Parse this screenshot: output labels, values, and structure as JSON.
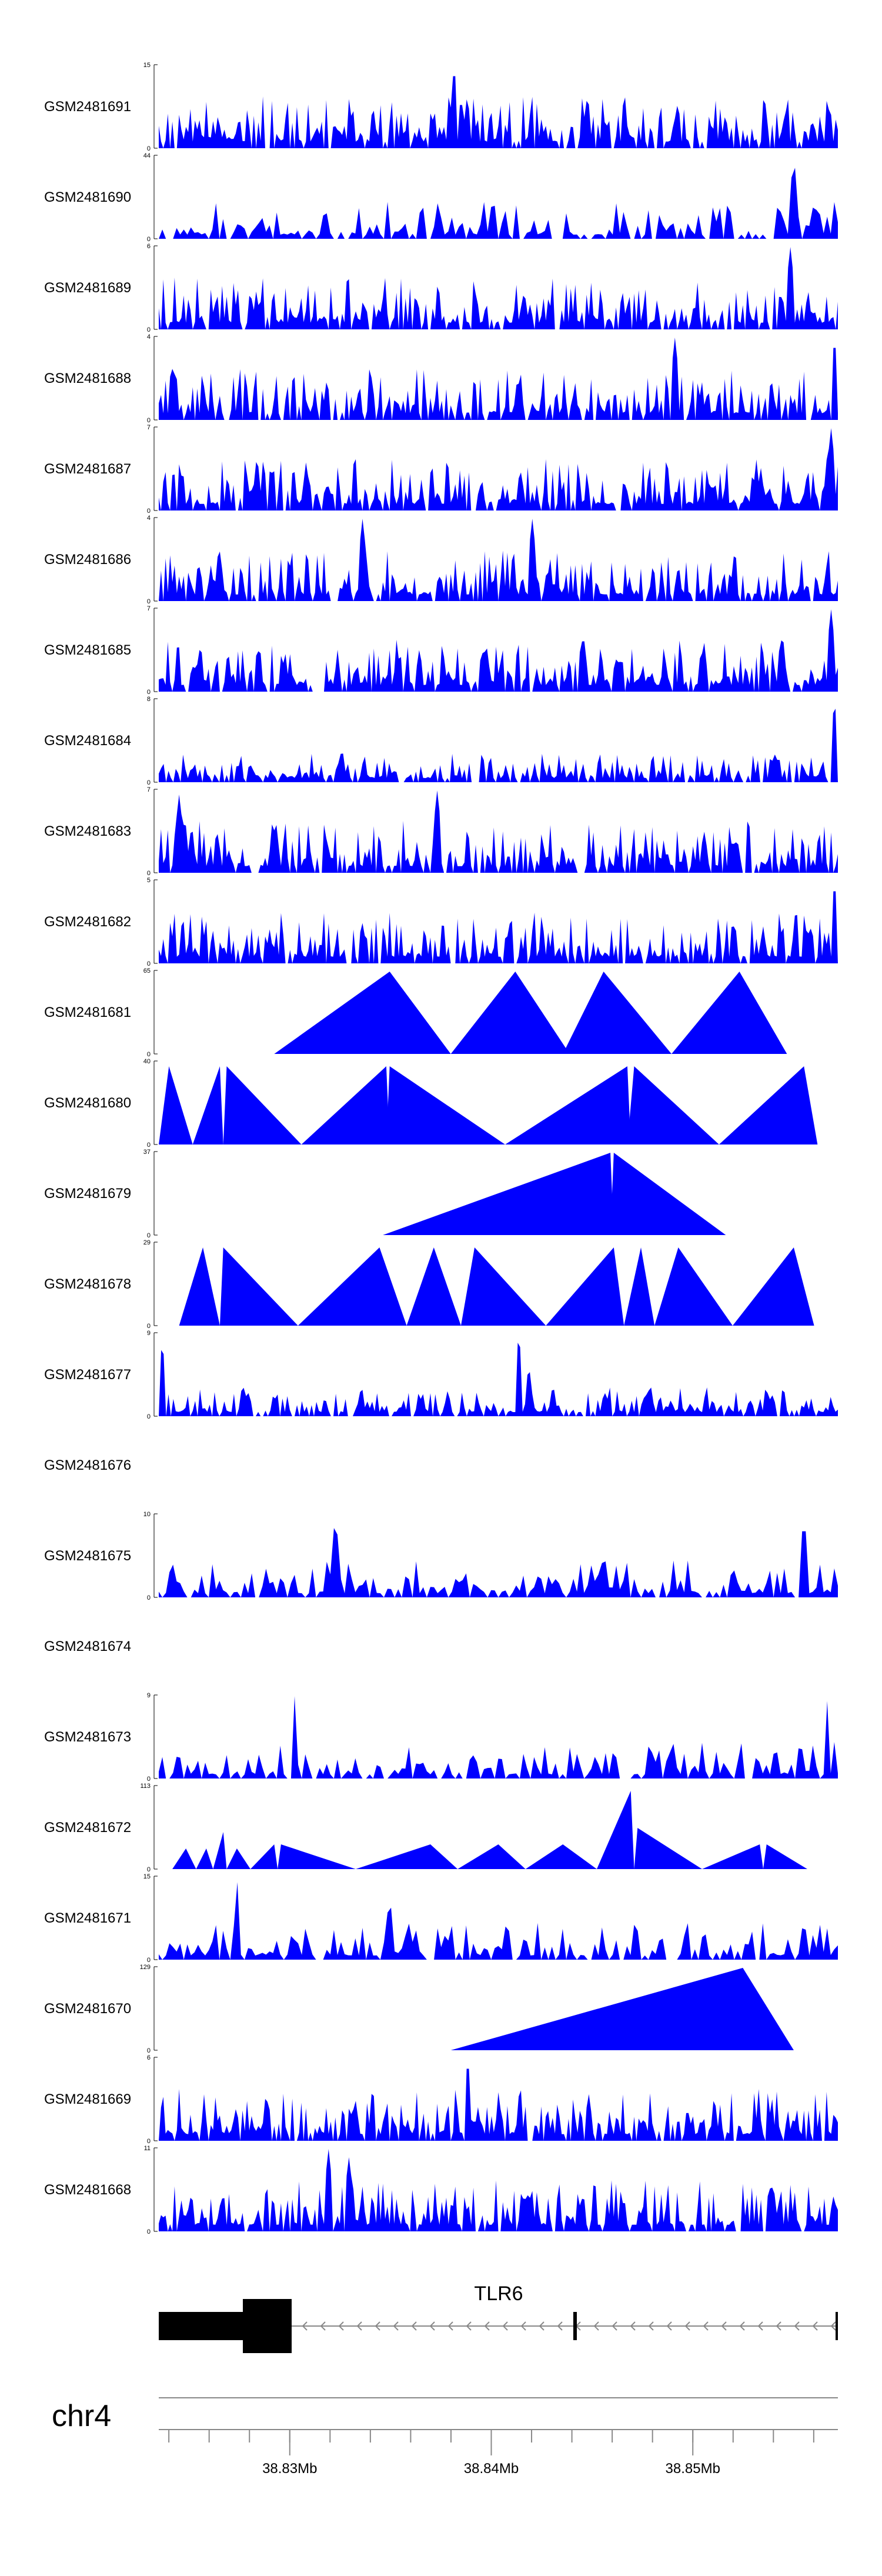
{
  "chart_data": {
    "type": "area",
    "chromosome": "chr4",
    "x_range": [
      38.8235,
      38.8572
    ],
    "x_ticks": [
      "38.83Mb",
      "38.84Mb",
      "38.85Mb"
    ],
    "x_tick_values": [
      38.83,
      38.84,
      38.85
    ],
    "color": "#0000ff",
    "gene": {
      "name": "TLR6",
      "strand": "-"
    },
    "tracks": [
      {
        "label": "GSM2481691",
        "ymax": 15,
        "pattern": "dense",
        "seed": 11,
        "peaks": [
          [
            0.435,
            1.0
          ],
          [
            0.445,
            0.6
          ],
          [
            0.455,
            0.55
          ]
        ]
      },
      {
        "label": "GSM2481690",
        "ymax": 44,
        "pattern": "sparse",
        "seed": 12,
        "peaks": [
          [
            0.935,
            1.0
          ],
          [
            0.955,
            0.2
          ]
        ]
      },
      {
        "label": "GSM2481689",
        "ymax": 6,
        "pattern": "dense",
        "seed": 13,
        "peaks": [
          [
            0.93,
            1.0
          ]
        ]
      },
      {
        "label": "GSM2481688",
        "ymax": 4,
        "pattern": "dense",
        "seed": 14,
        "peaks": [
          [
            0.76,
            1.0
          ],
          [
            0.995,
            1.0
          ]
        ]
      },
      {
        "label": "GSM2481687",
        "ymax": 7,
        "pattern": "dense",
        "seed": 15,
        "peaks": [
          [
            0.99,
            1.0
          ]
        ]
      },
      {
        "label": "GSM2481686",
        "ymax": 4,
        "pattern": "dense",
        "seed": 16,
        "peaks": [
          [
            0.3,
            1.0
          ],
          [
            0.55,
            1.0
          ]
        ]
      },
      {
        "label": "GSM2481685",
        "ymax": 7,
        "pattern": "dense",
        "seed": 17,
        "peaks": [
          [
            0.99,
            1.0
          ]
        ]
      },
      {
        "label": "GSM2481684",
        "ymax": 8,
        "pattern": "lowdense",
        "seed": 18,
        "peaks": [
          [
            0.995,
            1.0
          ]
        ]
      },
      {
        "label": "GSM2481683",
        "ymax": 7,
        "pattern": "dense",
        "seed": 19,
        "peaks": [
          [
            0.03,
            0.95
          ],
          [
            0.41,
            1.0
          ]
        ]
      },
      {
        "label": "GSM2481682",
        "ymax": 5,
        "pattern": "dense",
        "seed": 20,
        "peaks": [
          [
            0.995,
            1.0
          ]
        ]
      },
      {
        "label": "GSM2481681",
        "ymax": 65,
        "pattern": "triangles",
        "triangles": [
          [
            0.17,
            0.34,
            0.43,
            1.0
          ],
          [
            0.43,
            0.525,
            0.605,
            1.0
          ],
          [
            0.595,
            0.655,
            0.755,
            1.0
          ],
          [
            0.755,
            0.855,
            0.925,
            1.0
          ]
        ]
      },
      {
        "label": "GSM2481680",
        "ymax": 40,
        "pattern": "triangles",
        "triangles": [
          [
            0.0,
            0.015,
            0.05,
            0.95
          ],
          [
            0.05,
            0.09,
            0.095,
            0.95
          ],
          [
            0.095,
            0.1,
            0.21,
            0.95
          ],
          [
            0.21,
            0.335,
            0.34,
            0.95
          ],
          [
            0.335,
            0.34,
            0.51,
            0.95
          ],
          [
            0.51,
            0.69,
            0.695,
            0.95
          ],
          [
            0.69,
            0.7,
            0.825,
            0.95
          ],
          [
            0.825,
            0.95,
            0.97,
            0.95
          ]
        ]
      },
      {
        "label": "GSM2481679",
        "ymax": 37,
        "pattern": "triangles",
        "triangles": [
          [
            0.33,
            0.665,
            0.67,
            1.0
          ],
          [
            0.665,
            0.67,
            0.835,
            1.0
          ]
        ]
      },
      {
        "label": "GSM2481678",
        "ymax": 29,
        "pattern": "triangles",
        "triangles": [
          [
            0.03,
            0.065,
            0.09,
            0.95
          ],
          [
            0.09,
            0.095,
            0.205,
            0.95
          ],
          [
            0.205,
            0.325,
            0.365,
            0.95
          ],
          [
            0.365,
            0.405,
            0.445,
            0.95
          ],
          [
            0.445,
            0.465,
            0.57,
            0.95
          ],
          [
            0.57,
            0.67,
            0.685,
            0.95
          ],
          [
            0.685,
            0.71,
            0.73,
            0.95
          ],
          [
            0.73,
            0.765,
            0.845,
            0.95
          ],
          [
            0.845,
            0.935,
            0.965,
            0.95
          ]
        ]
      },
      {
        "label": "GSM2481677",
        "ymax": 9,
        "pattern": "lowdense",
        "seed": 21,
        "peaks": [
          [
            0.53,
            1.0
          ],
          [
            0.545,
            0.6
          ],
          [
            0.005,
            0.9
          ]
        ]
      },
      {
        "label": "GSM2481676",
        "ymax": null,
        "pattern": "empty"
      },
      {
        "label": "GSM2481675",
        "ymax": 10,
        "pattern": "medium",
        "seed": 22,
        "peaks": [
          [
            0.26,
            1.0
          ],
          [
            0.95,
            1.0
          ]
        ]
      },
      {
        "label": "GSM2481674",
        "ymax": null,
        "pattern": "empty"
      },
      {
        "label": "GSM2481673",
        "ymax": 9,
        "pattern": "medium",
        "seed": 23,
        "peaks": [
          [
            0.2,
            1.0
          ],
          [
            0.985,
            1.0
          ]
        ]
      },
      {
        "label": "GSM2481672",
        "ymax": 113,
        "pattern": "triangles",
        "triangles": [
          [
            0.02,
            0.04,
            0.055,
            0.25
          ],
          [
            0.055,
            0.07,
            0.08,
            0.25
          ],
          [
            0.08,
            0.095,
            0.1,
            0.45
          ],
          [
            0.1,
            0.115,
            0.135,
            0.25
          ],
          [
            0.135,
            0.17,
            0.175,
            0.3
          ],
          [
            0.175,
            0.18,
            0.29,
            0.3
          ],
          [
            0.29,
            0.4,
            0.44,
            0.3
          ],
          [
            0.44,
            0.5,
            0.54,
            0.3
          ],
          [
            0.54,
            0.595,
            0.645,
            0.3
          ],
          [
            0.645,
            0.695,
            0.7,
            0.95
          ],
          [
            0.7,
            0.705,
            0.8,
            0.5
          ],
          [
            0.8,
            0.885,
            0.89,
            0.3
          ],
          [
            0.89,
            0.895,
            0.955,
            0.3
          ]
        ]
      },
      {
        "label": "GSM2481671",
        "ymax": 15,
        "pattern": "medium",
        "seed": 24,
        "peaks": [
          [
            0.115,
            1.0
          ],
          [
            0.34,
            0.75
          ]
        ]
      },
      {
        "label": "GSM2481670",
        "ymax": 129,
        "pattern": "triangles",
        "triangles": [
          [
            0.43,
            0.86,
            0.935,
            1.0
          ]
        ]
      },
      {
        "label": "GSM2481669",
        "ymax": 6,
        "pattern": "dense",
        "seed": 25,
        "peaks": [
          [
            0.455,
            1.0
          ]
        ]
      },
      {
        "label": "GSM2481668",
        "ymax": 11,
        "pattern": "dense",
        "seed": 26,
        "peaks": [
          [
            0.25,
            1.0
          ],
          [
            0.28,
            0.9
          ]
        ]
      }
    ]
  }
}
